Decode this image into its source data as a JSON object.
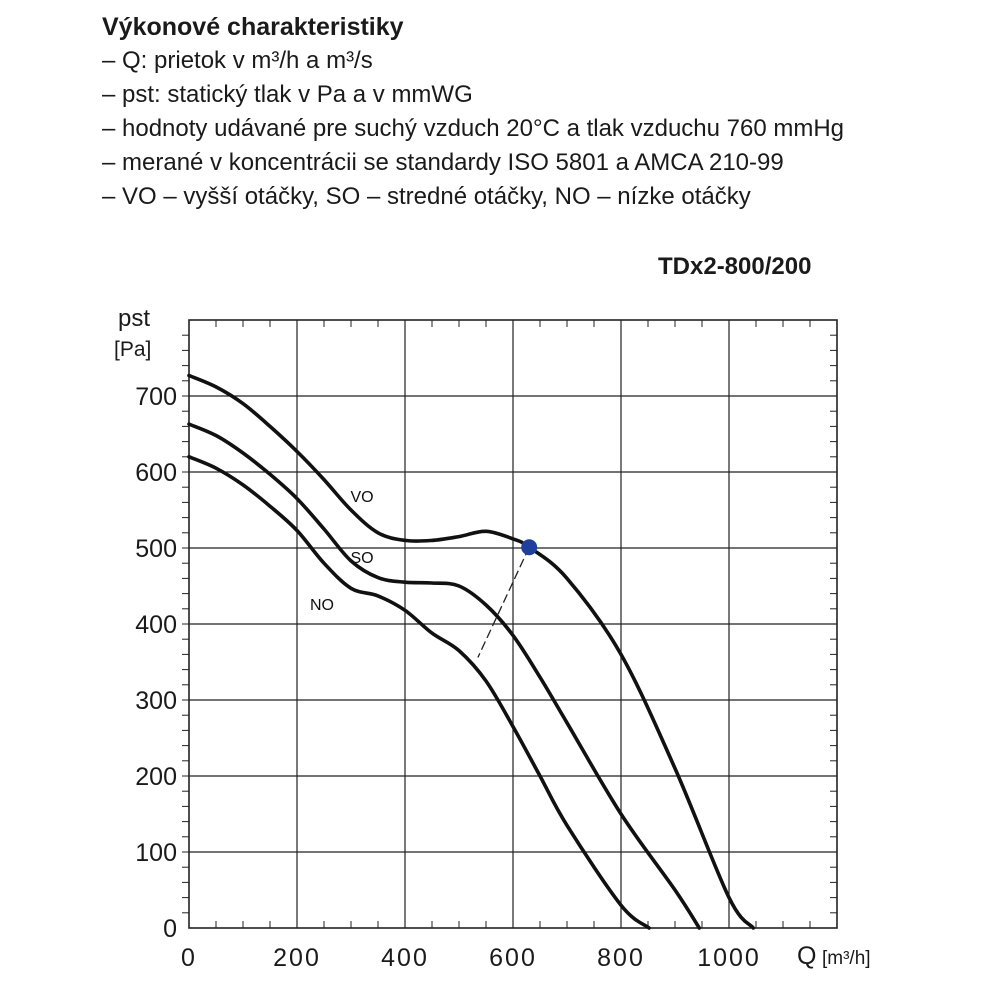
{
  "header": {
    "title": "Výkonové charakteristiky",
    "notes": [
      "– Q: prietok v m³/h a m³/s",
      "– pst: statický tlak v Pa a v mmWG",
      "– hodnoty udávané  pre suchý vzduch 20°C a tlak vzduchu 760 mmHg",
      "– merané v koncentrácii se standardy ISO 5801 a AMCA 210-99",
      "– VO – vyšší otáčky, SO – stredné otáčky, NO – nízke otáčky"
    ]
  },
  "chart_data": {
    "type": "line",
    "title": "TDx2-800/200",
    "xlabel": "Q",
    "xunit": "[m³/h]",
    "ylabel": "pst",
    "yunit": "[Pa]",
    "xlim": [
      0,
      1200
    ],
    "ylim": [
      0,
      800
    ],
    "x_ticks": [
      0,
      200,
      400,
      600,
      800,
      1000
    ],
    "y_ticks": [
      0,
      100,
      200,
      300,
      400,
      500,
      600,
      700
    ],
    "grid": true,
    "series": [
      {
        "name": "VO",
        "x": [
          0,
          50,
          100,
          150,
          200,
          250,
          300,
          350,
          400,
          450,
          500,
          550,
          600,
          630,
          700,
          800,
          900,
          1000,
          1045
        ],
        "y": [
          727,
          712,
          690,
          660,
          627,
          590,
          550,
          520,
          510,
          510,
          515,
          522,
          512,
          501,
          460,
          360,
          210,
          40,
          0
        ]
      },
      {
        "name": "SO",
        "x": [
          0,
          50,
          100,
          150,
          200,
          250,
          300,
          350,
          400,
          450,
          500,
          550,
          600,
          650,
          700,
          800,
          900,
          945
        ],
        "y": [
          663,
          648,
          625,
          597,
          565,
          525,
          483,
          461,
          455,
          454,
          450,
          425,
          385,
          330,
          270,
          150,
          50,
          0
        ]
      },
      {
        "name": "NO",
        "x": [
          0,
          50,
          100,
          150,
          200,
          250,
          300,
          350,
          400,
          450,
          500,
          550,
          600,
          650,
          700,
          800,
          852
        ],
        "y": [
          620,
          605,
          583,
          555,
          523,
          480,
          447,
          437,
          418,
          388,
          365,
          325,
          265,
          200,
          135,
          30,
          0
        ]
      }
    ],
    "operating_point": {
      "x": 630,
      "y": 501
    },
    "operating_line": {
      "x": [
        630,
        535
      ],
      "y": [
        501,
        356
      ]
    }
  }
}
